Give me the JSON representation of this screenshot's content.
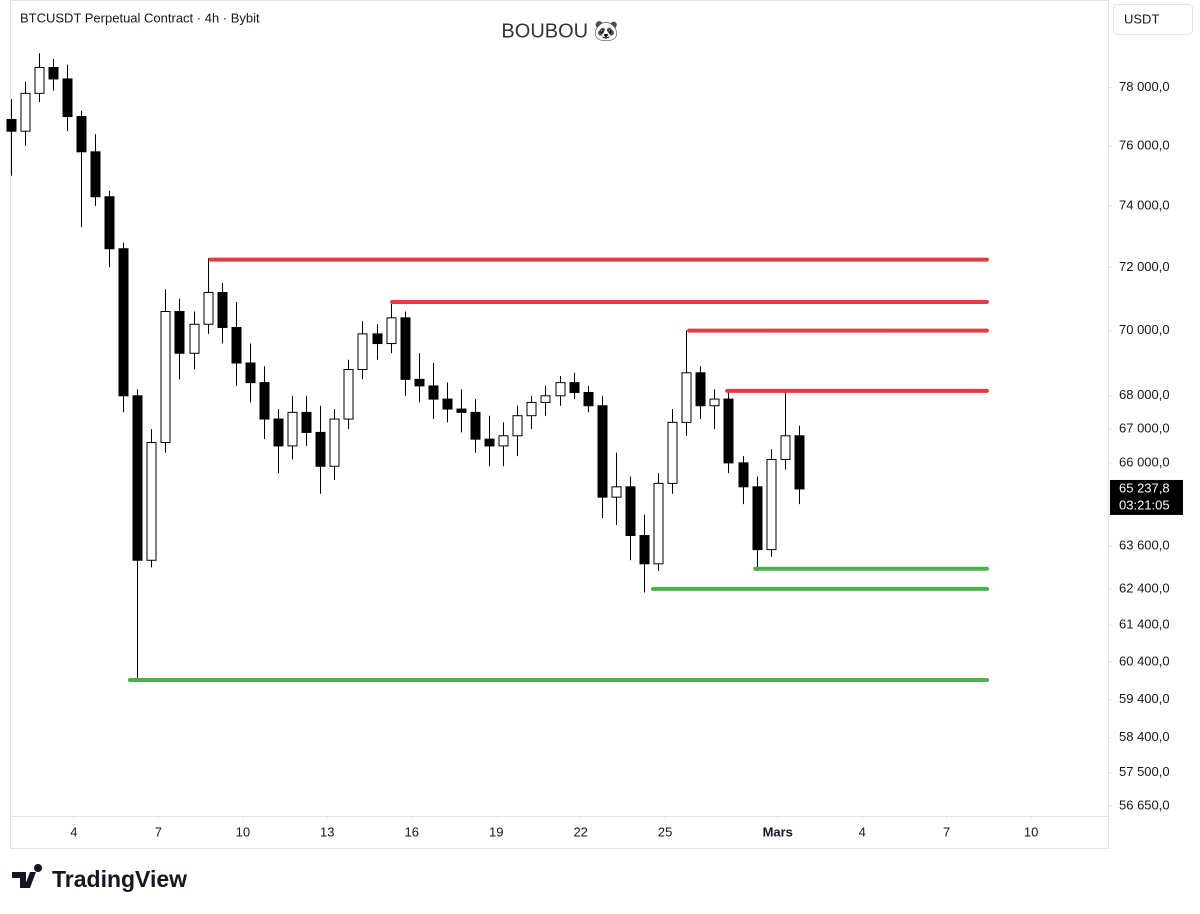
{
  "chart_data": {
    "type": "candlestick",
    "header": "BTCUSDT Perpetual Contract · 4h · Bybit",
    "title": "BOUBOU 🐼",
    "currency": "USDT",
    "brand": "TradingView",
    "log_scale": true,
    "up_color": "#ffffff",
    "down_color": "#000000",
    "xlim": [
      1.73,
      40.73
    ],
    "ylim": [
      56400,
      81100
    ],
    "xticks": [
      4,
      7,
      10,
      13,
      16,
      19,
      22,
      25,
      {
        "value": 29,
        "label": "Mars"
      },
      {
        "value": 32,
        "label": "4"
      },
      {
        "value": 35,
        "label": "7"
      },
      {
        "value": 38,
        "label": "10"
      }
    ],
    "yticks": [
      {
        "value": 78000,
        "label": "78 000,0"
      },
      {
        "value": 76000,
        "label": "76 000,0"
      },
      {
        "value": 74000,
        "label": "74 000,0"
      },
      {
        "value": 72000,
        "label": "72 000,0"
      },
      {
        "value": 70000,
        "label": "70 000,0"
      },
      {
        "value": 68000,
        "label": "68 000,0"
      },
      {
        "value": 67000,
        "label": "67 000,0"
      },
      {
        "value": 66000,
        "label": "66 000,0"
      },
      {
        "value": 63600,
        "label": "63 600,0"
      },
      {
        "value": 62400,
        "label": "62 400,0"
      },
      {
        "value": 61400,
        "label": "61 400,0"
      },
      {
        "value": 60400,
        "label": "60 400,0"
      },
      {
        "value": 59400,
        "label": "59 400,0"
      },
      {
        "value": 58400,
        "label": "58 400,0"
      },
      {
        "value": 57500,
        "label": "57 500,0"
      },
      {
        "value": 56650,
        "label": "56 650,0"
      }
    ],
    "last_price": {
      "value": 65237.8,
      "label": "65 237,8"
    },
    "countdown": "03:21:05",
    "x": [
      1.75,
      2.25,
      2.75,
      3.25,
      3.75,
      4.25,
      4.75,
      5.25,
      5.75,
      6.25,
      6.75,
      7.25,
      7.75,
      8.25,
      8.75,
      9.25,
      9.75,
      10.25,
      10.75,
      11.25,
      11.75,
      12.25,
      12.75,
      13.25,
      13.75,
      14.25,
      14.75,
      15.25,
      15.75,
      16.25,
      16.75,
      17.25,
      17.75,
      18.25,
      18.75,
      19.25,
      19.75,
      20.25,
      20.75,
      21.25,
      21.75,
      22.25,
      22.75,
      23.25,
      23.75,
      24.25,
      24.75,
      25.25,
      25.75,
      26.25,
      26.75,
      27.25,
      27.75,
      28.25,
      28.75,
      29.25,
      29.75
    ],
    "open": [
      76900,
      76500,
      77800,
      78700,
      78300,
      77000,
      75800,
      74300,
      72600,
      68000,
      63200,
      66600,
      70600,
      69300,
      70200,
      71200,
      70100,
      69000,
      68400,
      67300,
      66500,
      67500,
      66900,
      65900,
      67300,
      68800,
      69900,
      69600,
      70400,
      68500,
      68300,
      67900,
      67600,
      67500,
      66700,
      66500,
      66800,
      67400,
      67800,
      68000,
      68400,
      68100,
      67700,
      65000,
      65300,
      63900,
      63100,
      65400,
      67200,
      68700,
      67700,
      67900,
      66000,
      65300,
      63500,
      66100,
      66800
    ],
    "high": [
      77600,
      78200,
      79200,
      79000,
      78800,
      77200,
      76400,
      74500,
      72800,
      68200,
      67000,
      71300,
      71000,
      70600,
      72300,
      71500,
      70900,
      69600,
      68900,
      67600,
      68000,
      68000,
      67700,
      67600,
      69100,
      70300,
      70200,
      70900,
      70600,
      69300,
      69000,
      68400,
      68200,
      67900,
      67400,
      67200,
      67700,
      68000,
      68300,
      68600,
      68700,
      68300,
      68000,
      66300,
      65600,
      64500,
      65700,
      67600,
      70000,
      68900,
      68200,
      68200,
      66200,
      65600,
      66400,
      68200,
      67100
    ],
    "low": [
      75000,
      76000,
      77500,
      77900,
      76500,
      73300,
      74000,
      72000,
      67500,
      59900,
      63000,
      66300,
      68500,
      68800,
      69900,
      69600,
      68300,
      67800,
      66700,
      65700,
      66100,
      66500,
      65100,
      65500,
      67000,
      68500,
      69100,
      69300,
      68000,
      67800,
      67300,
      67200,
      66900,
      66300,
      65900,
      65900,
      66200,
      67000,
      67400,
      67700,
      67900,
      67500,
      64400,
      64200,
      63200,
      62300,
      62900,
      65100,
      66800,
      67300,
      67000,
      65700,
      64800,
      62900,
      63300,
      65800,
      64800
    ],
    "close": [
      76500,
      77800,
      78700,
      78300,
      77000,
      75800,
      74300,
      72600,
      68000,
      63200,
      66600,
      70600,
      69300,
      70200,
      71200,
      70100,
      69000,
      68400,
      67300,
      66500,
      67500,
      66900,
      65900,
      67300,
      68800,
      69900,
      69600,
      70400,
      68500,
      68300,
      67900,
      67600,
      67500,
      66700,
      66500,
      66800,
      67400,
      67800,
      68000,
      68400,
      68100,
      67700,
      65000,
      65300,
      63900,
      63100,
      65400,
      67200,
      68700,
      67700,
      67900,
      66000,
      65300,
      63500,
      66100,
      66800,
      65237.8
    ],
    "levels": [
      {
        "color": "#e23b47",
        "value": 72250,
        "x": [
          8.85,
          36.43
        ]
      },
      {
        "color": "#e23b47",
        "value": 70900,
        "x": [
          15.3,
          36.43
        ]
      },
      {
        "color": "#e23b47",
        "value": 70000,
        "x": [
          25.85,
          36.43
        ]
      },
      {
        "color": "#e23b47",
        "value": 68150,
        "x": [
          27.2,
          36.43
        ]
      },
      {
        "color": "#4caf50",
        "value": 62960,
        "x": [
          28.2,
          36.43
        ]
      },
      {
        "color": "#4caf50",
        "value": 62400,
        "x": [
          24.57,
          36.43
        ]
      },
      {
        "color": "#4caf50",
        "value": 59920,
        "x": [
          5.99,
          36.43
        ]
      }
    ]
  }
}
